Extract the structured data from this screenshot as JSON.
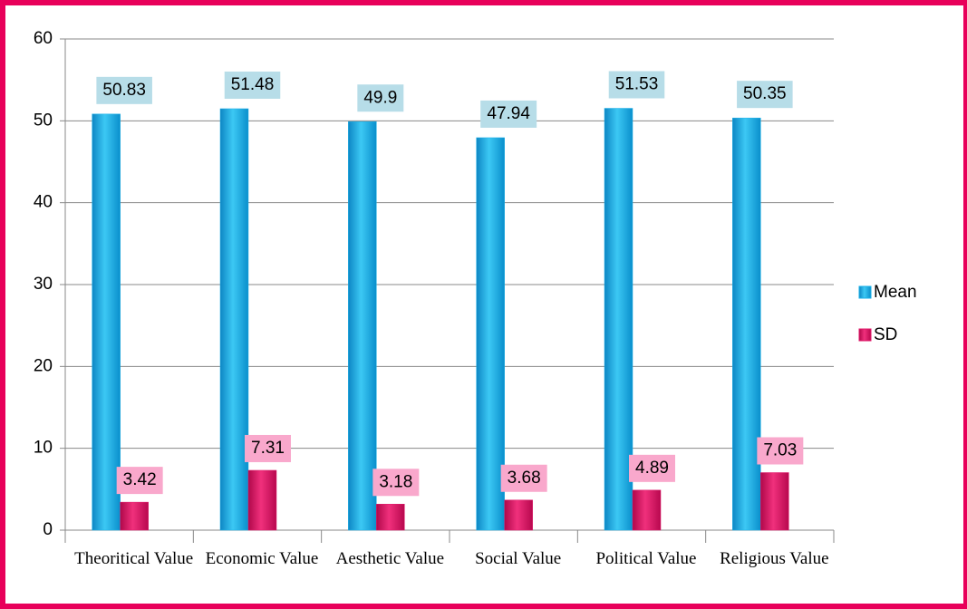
{
  "chart_data": {
    "type": "bar",
    "categories": [
      "Theoritical Value",
      "Economic Value",
      "Aesthetic Value",
      "Social Value",
      "Political Value",
      "Religious Value"
    ],
    "series": [
      {
        "name": "Mean",
        "color": "#1ab0e8",
        "label_bg": "#b7dde8",
        "values": [
          50.83,
          51.48,
          49.9,
          47.94,
          51.53,
          50.35
        ]
      },
      {
        "name": "SD",
        "color": "#e0186a",
        "label_bg": "#f9a8cc",
        "values": [
          3.42,
          7.31,
          3.18,
          3.68,
          4.89,
          7.03
        ]
      }
    ],
    "ylim": [
      0,
      60
    ],
    "yticks": [
      0,
      10,
      20,
      30,
      40,
      50,
      60
    ],
    "grid": true,
    "legend": "right"
  }
}
